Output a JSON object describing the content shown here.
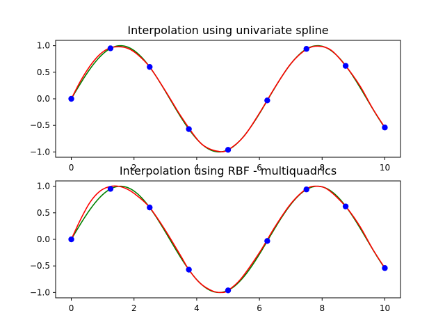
{
  "chart_data": [
    {
      "type": "line",
      "title": "Interpolation using univariate spline",
      "xlabel": "",
      "ylabel": "",
      "xlim": [
        -0.5,
        10.5
      ],
      "ylim": [
        -1.1,
        1.1
      ],
      "xticks": [
        0,
        2,
        4,
        6,
        8,
        10
      ],
      "yticks": [
        -1.0,
        -0.5,
        0.0,
        0.5,
        1.0
      ],
      "xtick_labels": [
        "0",
        "2",
        "4",
        "6",
        "8",
        "10"
      ],
      "ytick_labels": [
        "−1.0",
        "−0.5",
        "0.0",
        "0.5",
        "1.0"
      ],
      "grid": false,
      "colors": {
        "curve_a": "#008000",
        "curve_b": "#ff0000",
        "points": "#0000ff"
      },
      "points": {
        "x": [
          0,
          1.25,
          2.5,
          3.75,
          5.0,
          6.25,
          7.5,
          8.75,
          10.0
        ],
        "y": [
          0.0,
          0.95,
          0.6,
          -0.57,
          -0.96,
          -0.03,
          0.94,
          0.62,
          -0.54
        ]
      },
      "series": [
        {
          "color": "#008000",
          "function": "sin",
          "x_range": [
            0,
            10
          ]
        },
        {
          "color": "#ff0000",
          "x": [
            0,
            0.3,
            0.6,
            0.9,
            1.2,
            1.5,
            1.8,
            2.1,
            2.5,
            3.0,
            3.5,
            4.0,
            4.3,
            4.7,
            5.0,
            5.5,
            6.0,
            6.5,
            7.0,
            7.5,
            7.9,
            8.3,
            8.75,
            9.2,
            9.6,
            10.0
          ],
          "y": [
            0.0,
            0.34,
            0.62,
            0.83,
            0.95,
            0.98,
            0.95,
            0.84,
            0.6,
            0.15,
            -0.33,
            -0.75,
            -0.91,
            -0.99,
            -0.96,
            -0.71,
            -0.27,
            0.22,
            0.66,
            0.93,
            0.99,
            0.91,
            0.62,
            0.25,
            -0.17,
            -0.54
          ]
        }
      ]
    },
    {
      "type": "line",
      "title": "Interpolation using RBF - multiquadrics",
      "xlabel": "",
      "ylabel": "",
      "xlim": [
        -0.5,
        10.5
      ],
      "ylim": [
        -1.1,
        1.1
      ],
      "xticks": [
        0,
        2,
        4,
        6,
        8,
        10
      ],
      "yticks": [
        -1.0,
        -0.5,
        0.0,
        0.5,
        1.0
      ],
      "xtick_labels": [
        "0",
        "2",
        "4",
        "6",
        "8",
        "10"
      ],
      "ytick_labels": [
        "−1.0",
        "−0.5",
        "0.0",
        "0.5",
        "1.0"
      ],
      "grid": false,
      "colors": {
        "curve_a": "#008000",
        "curve_b": "#ff0000",
        "points": "#0000ff"
      },
      "points": {
        "x": [
          0,
          1.25,
          2.5,
          3.75,
          5.0,
          6.25,
          7.5,
          8.75,
          10.0
        ],
        "y": [
          0.0,
          0.95,
          0.6,
          -0.57,
          -0.96,
          -0.03,
          0.94,
          0.62,
          -0.54
        ]
      },
      "series": [
        {
          "color": "#008000",
          "function": "sin",
          "x_range": [
            0,
            10
          ]
        },
        {
          "color": "#ff0000",
          "x": [
            0,
            0.3,
            0.6,
            0.9,
            1.2,
            1.5,
            1.8,
            2.1,
            2.5,
            3.0,
            3.5,
            3.75,
            4.1,
            4.5,
            4.8,
            5.0,
            5.4,
            6.0,
            6.5,
            7.0,
            7.5,
            7.85,
            8.2,
            8.75,
            9.2,
            9.6,
            10.0
          ],
          "y": [
            0.0,
            0.38,
            0.7,
            0.9,
            0.99,
            1.0,
            0.94,
            0.82,
            0.6,
            0.17,
            -0.32,
            -0.57,
            -0.82,
            -0.97,
            -1.0,
            -0.96,
            -0.75,
            -0.25,
            0.24,
            0.67,
            0.95,
            1.0,
            0.93,
            0.62,
            0.25,
            -0.17,
            -0.54
          ]
        }
      ]
    }
  ]
}
